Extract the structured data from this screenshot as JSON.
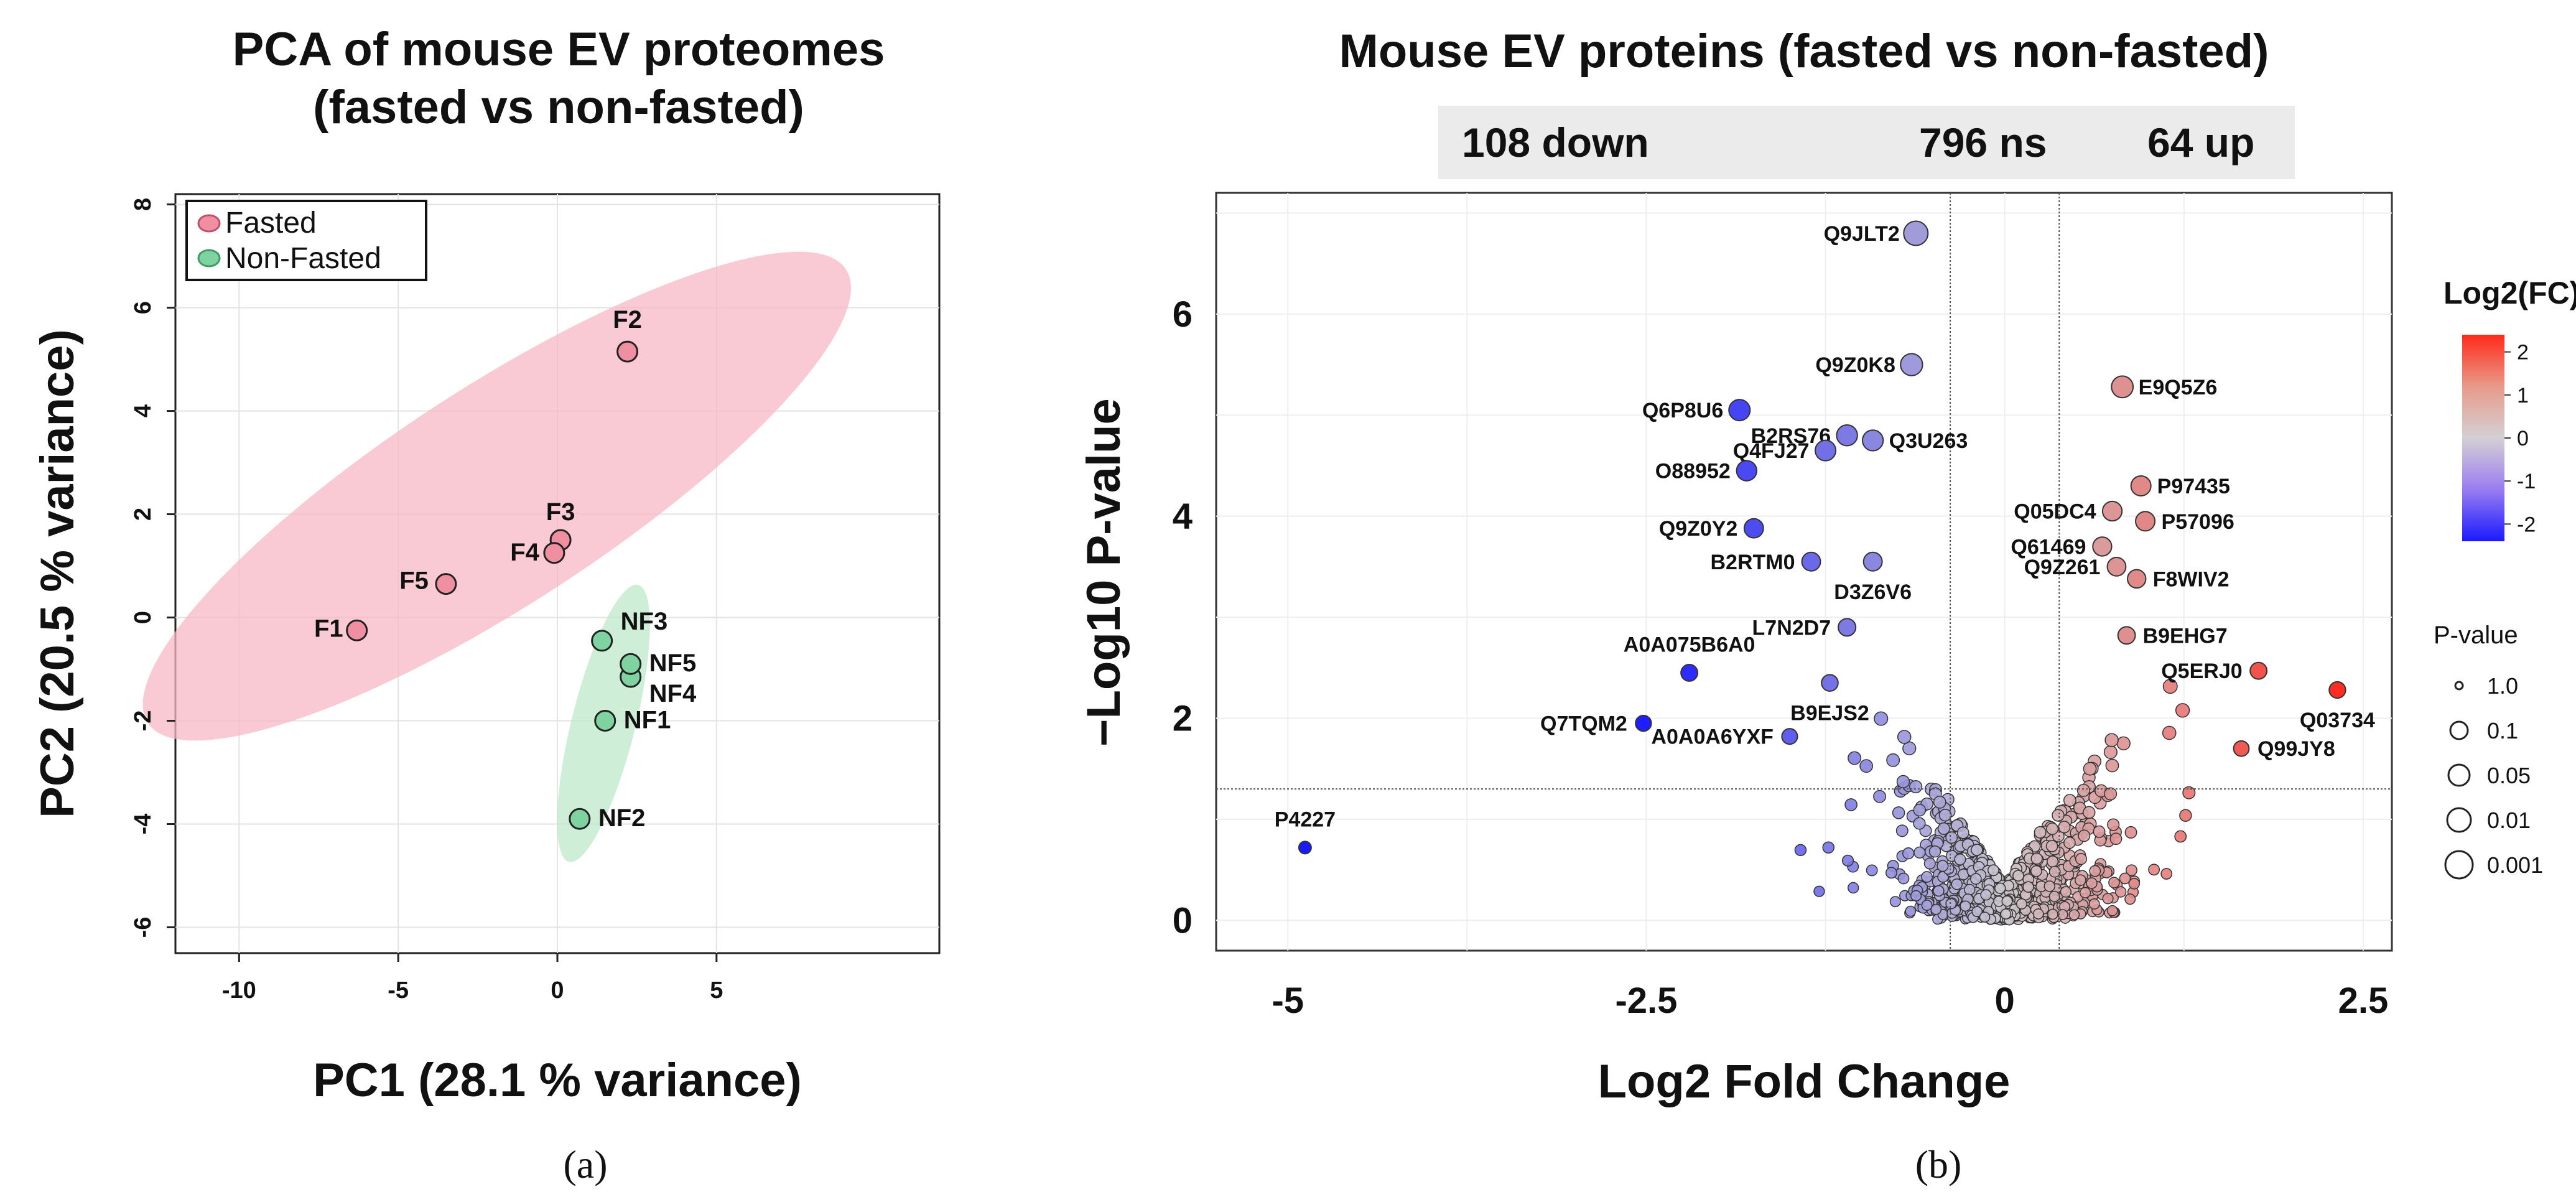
{
  "chart_data": [
    {
      "type": "scatter",
      "panel": "(a)",
      "title_line1": "PCA of mouse EV proteomes",
      "title_line2": "(fasted vs non-fasted)",
      "xlabel": "PC1 (28.1 % variance)",
      "ylabel": "PC2 (20.5 % variance)",
      "xlim": [
        -12,
        12
      ],
      "ylim": [
        -6.5,
        8.2
      ],
      "xticks": [
        "-10",
        "-5",
        "0",
        "5"
      ],
      "xtick_values": [
        -10,
        -5,
        0,
        5
      ],
      "yticks": [
        "-6",
        "-4",
        "-2",
        "0",
        "2",
        "4",
        "6",
        "8"
      ],
      "ytick_values": [
        -6,
        -4,
        -2,
        0,
        2,
        4,
        6,
        8
      ],
      "grid": true,
      "legend": [
        {
          "label": "Fasted",
          "color": "#f08fa2"
        },
        {
          "label": "Non-Fasted",
          "color": "#7fd3a0"
        }
      ],
      "series": [
        {
          "name": "Fasted",
          "color": "#f08fa2",
          "ellipse_color": "#f7b8c5",
          "points": [
            {
              "label": "F1",
              "x": -6.3,
              "y": -0.25
            },
            {
              "label": "F2",
              "x": 2.2,
              "y": 5.15
            },
            {
              "label": "F3",
              "x": 0.1,
              "y": 1.5
            },
            {
              "label": "F4",
              "x": -0.1,
              "y": 1.25
            },
            {
              "label": "F5",
              "x": -3.5,
              "y": 0.65
            }
          ]
        },
        {
          "name": "Non-Fasted",
          "color": "#7fd3a0",
          "ellipse_color": "#bfe8c9",
          "points": [
            {
              "label": "NF1",
              "x": 1.5,
              "y": -2.0
            },
            {
              "label": "NF2",
              "x": 0.7,
              "y": -3.9
            },
            {
              "label": "NF3",
              "x": 1.4,
              "y": -0.45
            },
            {
              "label": "NF4",
              "x": 2.3,
              "y": -1.15
            },
            {
              "label": "NF5",
              "x": 2.3,
              "y": -0.9
            }
          ]
        }
      ]
    },
    {
      "type": "scatter",
      "panel": "(b)",
      "title": "Mouse EV proteins (fasted vs non-fasted)",
      "counts": {
        "down": "108 down",
        "ns": "796 ns",
        "up": "64 up"
      },
      "xlabel": "Log2 Fold Change",
      "ylabel": "−Log10 P-value",
      "xlim": [
        -5.5,
        2.7
      ],
      "ylim": [
        -0.3,
        7.2
      ],
      "xticks": [
        "-5",
        "-2.5",
        "0",
        "2.5"
      ],
      "xtick_values": [
        -5,
        -2.5,
        0,
        2.5
      ],
      "yticks": [
        "0",
        "2",
        "4",
        "6"
      ],
      "ytick_values": [
        0,
        2,
        4,
        6
      ],
      "thresholds": {
        "x": [
          -0.38,
          0.38
        ],
        "y": 1.3
      },
      "grid": true,
      "colorbar": {
        "title": "Log2(FC)",
        "ticks": [
          "2",
          "1",
          "0",
          "-1",
          "-2"
        ],
        "tick_values": [
          2,
          1,
          0,
          -1,
          -2
        ],
        "min": -2.4,
        "max": 2.4
      },
      "size_legend": {
        "title": "P-value",
        "items": [
          "1.0",
          "0.1",
          "0.05",
          "0.01",
          "0.001"
        ]
      },
      "labeled_points": [
        {
          "label": "Q9JLT2",
          "x": -0.62,
          "y": 6.8,
          "side": "left"
        },
        {
          "label": "Q9Z0K8",
          "x": -0.65,
          "y": 5.5,
          "side": "left"
        },
        {
          "label": "E9Q5Z6",
          "x": 0.82,
          "y": 5.28,
          "side": "right"
        },
        {
          "label": "Q6P8U6",
          "x": -1.85,
          "y": 5.05,
          "side": "left"
        },
        {
          "label": "B2RS76",
          "x": -1.1,
          "y": 4.8,
          "side": "left"
        },
        {
          "label": "Q3U263",
          "x": -0.92,
          "y": 4.75,
          "side": "right"
        },
        {
          "label": "Q4FJ27",
          "x": -1.25,
          "y": 4.65,
          "side": "left"
        },
        {
          "label": "O88952",
          "x": -1.8,
          "y": 4.45,
          "side": "left"
        },
        {
          "label": "P97435",
          "x": 0.95,
          "y": 4.3,
          "side": "right"
        },
        {
          "label": "Q05DC4",
          "x": 0.75,
          "y": 4.05,
          "side": "left"
        },
        {
          "label": "P57096",
          "x": 0.98,
          "y": 3.95,
          "side": "right"
        },
        {
          "label": "Q9Z0Y2",
          "x": -1.75,
          "y": 3.88,
          "side": "left"
        },
        {
          "label": "Q61469",
          "x": 0.68,
          "y": 3.7,
          "side": "left"
        },
        {
          "label": "B2RTM0",
          "x": -1.35,
          "y": 3.55,
          "side": "left"
        },
        {
          "label": "Q9Z261",
          "x": 0.78,
          "y": 3.5,
          "side": "left"
        },
        {
          "label": "F8WIV2",
          "x": 0.92,
          "y": 3.38,
          "side": "right"
        },
        {
          "label": "D3Z6V6",
          "x": -0.92,
          "y": 3.55,
          "side": "below"
        },
        {
          "label": "L7N2D7",
          "x": -1.1,
          "y": 2.9,
          "side": "left"
        },
        {
          "label": "B9EHG7",
          "x": 0.85,
          "y": 2.82,
          "side": "right"
        },
        {
          "label": "Q5ERJ0",
          "x": 1.77,
          "y": 2.47,
          "side": "left"
        },
        {
          "label": "A0A075B6A0",
          "x": -2.2,
          "y": 2.45,
          "side": "above"
        },
        {
          "label": "B9EJS2",
          "x": -1.22,
          "y": 2.35,
          "side": "below"
        },
        {
          "label": "Q03734",
          "x": 2.32,
          "y": 2.28,
          "side": "below"
        },
        {
          "label": "Q7TQM2",
          "x": -2.52,
          "y": 1.95,
          "side": "left"
        },
        {
          "label": "A0A0A6YXF",
          "x": -1.5,
          "y": 1.82,
          "side": "left"
        },
        {
          "label": "Q99JY8",
          "x": 1.65,
          "y": 1.7,
          "side": "right"
        },
        {
          "label": "P4227",
          "x": -4.88,
          "y": 0.72,
          "side": "above"
        }
      ]
    }
  ],
  "colors": {
    "accent_red": "#e84a3a",
    "accent_blue": "#1a1aff",
    "neutral": "#c8c8c8"
  },
  "captions": {
    "a": "(a)",
    "b": "(b)"
  }
}
